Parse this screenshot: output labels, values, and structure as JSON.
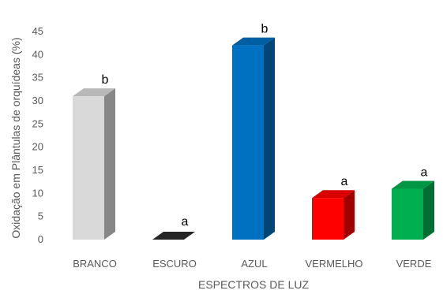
{
  "chart_data": {
    "type": "bar",
    "style": "3d-column",
    "categories": [
      "BRANCO",
      "ESCURO",
      "AZUL",
      "VERMELHO",
      "VERDE"
    ],
    "values": [
      31,
      0,
      42,
      9,
      11
    ],
    "annotations": [
      "b",
      "a",
      "b",
      "a",
      "a"
    ],
    "colors": [
      "#d9d9d9",
      "#262626",
      "#0070c0",
      "#ff0000",
      "#00b050"
    ],
    "xlabel": "ESPECTROS DE LUZ",
    "ylabel": "Oxidação em Plântulas de orquídeas (%)",
    "ylim": [
      0,
      45
    ],
    "yticks": [
      0,
      5,
      10,
      15,
      20,
      25,
      30,
      35,
      40,
      45
    ],
    "grid": false,
    "legend": false
  }
}
